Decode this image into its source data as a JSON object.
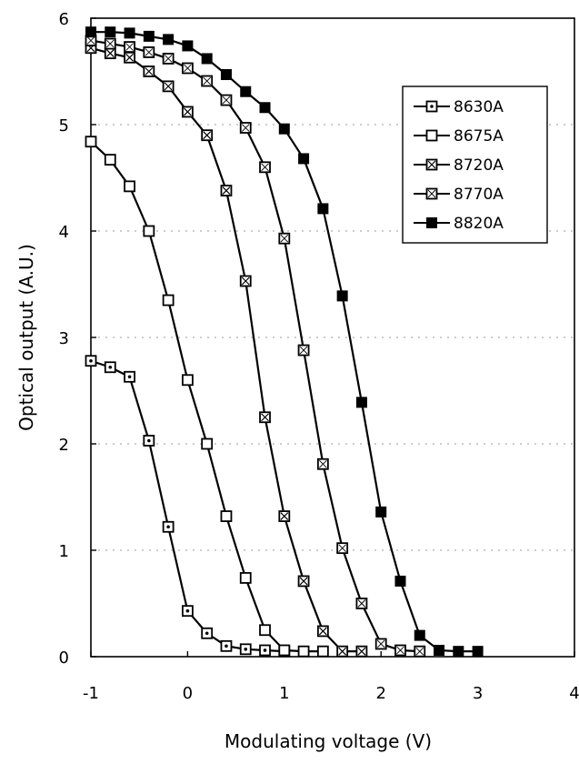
{
  "chart_data": {
    "type": "line",
    "xlabel": "Modulating voltage (V)",
    "ylabel": "Optical output (A.U.)",
    "xlim": [
      -1,
      4
    ],
    "ylim": [
      0,
      6
    ],
    "x_ticks": [
      "-1",
      "0",
      "1",
      "2",
      "3",
      "4"
    ],
    "y_ticks": [
      "0",
      "1",
      "2",
      "3",
      "4",
      "5",
      "6"
    ],
    "grid": "dashed horizontal",
    "legend_position": "top-right",
    "series": [
      {
        "name": "8630A",
        "marker": "square-dot",
        "color": "#000000",
        "points": [
          [
            -1.0,
            2.78
          ],
          [
            -0.8,
            2.72
          ],
          [
            -0.6,
            2.63
          ],
          [
            -0.4,
            2.03
          ],
          [
            -0.2,
            1.22
          ],
          [
            0.0,
            0.43
          ],
          [
            0.2,
            0.22
          ],
          [
            0.4,
            0.1
          ],
          [
            0.6,
            0.07
          ],
          [
            0.8,
            0.06
          ],
          [
            1.0,
            0.05
          ]
        ]
      },
      {
        "name": "8675A",
        "marker": "square-open",
        "color": "#000000",
        "points": [
          [
            -1.0,
            4.84
          ],
          [
            -0.8,
            4.67
          ],
          [
            -0.6,
            4.42
          ],
          [
            -0.4,
            4.0
          ],
          [
            -0.2,
            3.35
          ],
          [
            0.0,
            2.6
          ],
          [
            0.2,
            2.0
          ],
          [
            0.4,
            1.32
          ],
          [
            0.6,
            0.74
          ],
          [
            0.8,
            0.25
          ],
          [
            1.0,
            0.06
          ],
          [
            1.2,
            0.05
          ],
          [
            1.4,
            0.05
          ]
        ]
      },
      {
        "name": "8720A",
        "marker": "square-x",
        "color": "#000000",
        "points": [
          [
            -1.0,
            5.72
          ],
          [
            -0.8,
            5.67
          ],
          [
            -0.6,
            5.63
          ],
          [
            -0.4,
            5.5
          ],
          [
            -0.2,
            5.36
          ],
          [
            0.0,
            5.12
          ],
          [
            0.2,
            4.9
          ],
          [
            0.4,
            4.38
          ],
          [
            0.6,
            3.53
          ],
          [
            0.8,
            2.25
          ],
          [
            1.0,
            1.32
          ],
          [
            1.2,
            0.71
          ],
          [
            1.4,
            0.24
          ],
          [
            1.6,
            0.05
          ],
          [
            1.8,
            0.05
          ]
        ]
      },
      {
        "name": "8770A",
        "marker": "square-x-light",
        "color": "#000000",
        "points": [
          [
            -1.0,
            5.79
          ],
          [
            -0.8,
            5.76
          ],
          [
            -0.6,
            5.73
          ],
          [
            -0.4,
            5.68
          ],
          [
            -0.2,
            5.62
          ],
          [
            0.0,
            5.53
          ],
          [
            0.2,
            5.41
          ],
          [
            0.4,
            5.23
          ],
          [
            0.6,
            4.97
          ],
          [
            0.8,
            4.6
          ],
          [
            1.0,
            3.93
          ],
          [
            1.2,
            2.88
          ],
          [
            1.4,
            1.81
          ],
          [
            1.6,
            1.02
          ],
          [
            1.8,
            0.5
          ],
          [
            2.0,
            0.12
          ],
          [
            2.2,
            0.06
          ],
          [
            2.4,
            0.05
          ]
        ]
      },
      {
        "name": "8820A",
        "marker": "square-filled",
        "color": "#000000",
        "points": [
          [
            -1.0,
            5.87
          ],
          [
            -0.8,
            5.87
          ],
          [
            -0.6,
            5.86
          ],
          [
            -0.4,
            5.83
          ],
          [
            -0.2,
            5.8
          ],
          [
            0.0,
            5.74
          ],
          [
            0.2,
            5.62
          ],
          [
            0.4,
            5.47
          ],
          [
            0.6,
            5.31
          ],
          [
            0.8,
            5.16
          ],
          [
            1.0,
            4.96
          ],
          [
            1.2,
            4.68
          ],
          [
            1.4,
            4.21
          ],
          [
            1.6,
            3.39
          ],
          [
            1.8,
            2.39
          ],
          [
            2.0,
            1.36
          ],
          [
            2.2,
            0.71
          ],
          [
            2.4,
            0.2
          ],
          [
            2.6,
            0.06
          ],
          [
            2.8,
            0.05
          ],
          [
            3.0,
            0.05
          ]
        ]
      }
    ]
  }
}
